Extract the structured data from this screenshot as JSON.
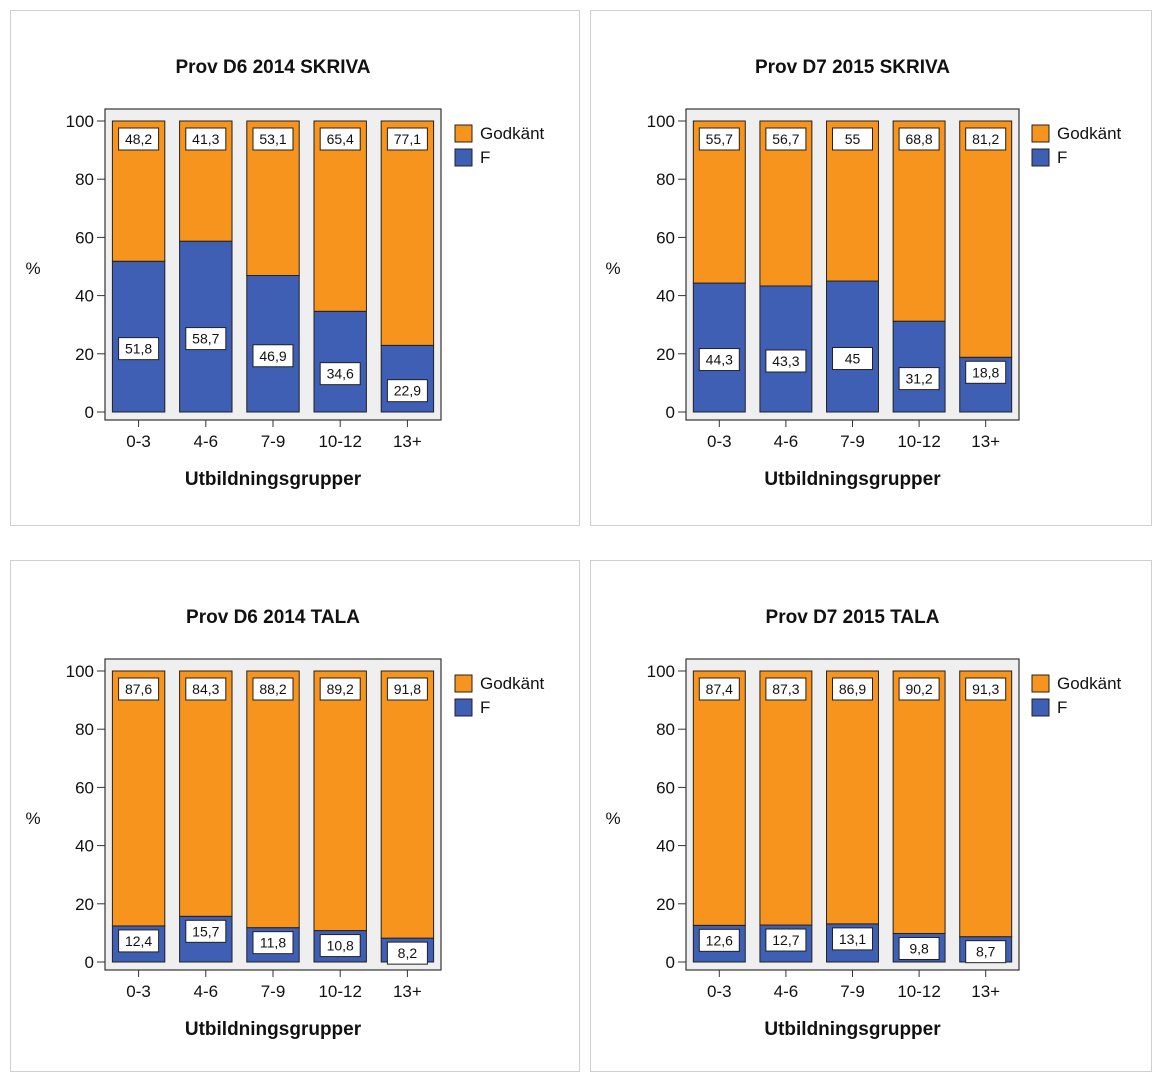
{
  "colors": {
    "godkant": "#F7941D",
    "f": "#3F5FB5",
    "plot_bg": "#EFEFEF"
  },
  "chart_data": [
    {
      "type": "bar",
      "stacked": true,
      "title": "Prov D6 2014 SKRIVA",
      "xlabel": "Utbildningsgrupper",
      "ylabel": "%",
      "ylim": [
        0,
        100
      ],
      "yticks": [
        "0",
        "20",
        "40",
        "60",
        "80",
        "100"
      ],
      "categories": [
        "0-3",
        "4-6",
        "7-9",
        "10-12",
        "13+"
      ],
      "legend_position": "right",
      "series": [
        {
          "name": "Godkänt",
          "values": [
            48.2,
            41.3,
            53.1,
            65.4,
            77.1
          ],
          "labels": [
            "48,2",
            "41,3",
            "53,1",
            "65,4",
            "77,1"
          ]
        },
        {
          "name": "F",
          "values": [
            51.8,
            58.7,
            46.9,
            34.6,
            22.9
          ],
          "labels": [
            "51,8",
            "58,7",
            "46,9",
            "34,6",
            "22,9"
          ]
        }
      ]
    },
    {
      "type": "bar",
      "stacked": true,
      "title": "Prov D7 2015 SKRIVA",
      "xlabel": "Utbildningsgrupper",
      "ylabel": "%",
      "ylim": [
        0,
        100
      ],
      "yticks": [
        "0",
        "20",
        "40",
        "60",
        "80",
        "100"
      ],
      "categories": [
        "0-3",
        "4-6",
        "7-9",
        "10-12",
        "13+"
      ],
      "legend_position": "right",
      "series": [
        {
          "name": "Godkänt",
          "values": [
            55.7,
            56.7,
            55,
            68.8,
            81.2
          ],
          "labels": [
            "55,7",
            "56,7",
            "55",
            "68,8",
            "81,2"
          ]
        },
        {
          "name": "F",
          "values": [
            44.3,
            43.3,
            45,
            31.2,
            18.8
          ],
          "labels": [
            "44,3",
            "43,3",
            "45",
            "31,2",
            "18,8"
          ]
        }
      ]
    },
    {
      "type": "bar",
      "stacked": true,
      "title": "Prov D6 2014 TALA",
      "xlabel": "Utbildningsgrupper",
      "ylabel": "%",
      "ylim": [
        0,
        100
      ],
      "yticks": [
        "0",
        "20",
        "40",
        "60",
        "80",
        "100"
      ],
      "categories": [
        "0-3",
        "4-6",
        "7-9",
        "10-12",
        "13+"
      ],
      "legend_position": "right",
      "series": [
        {
          "name": "Godkänt",
          "values": [
            87.6,
            84.3,
            88.2,
            89.2,
            91.8
          ],
          "labels": [
            "87,6",
            "84,3",
            "88,2",
            "89,2",
            "91,8"
          ]
        },
        {
          "name": "F",
          "values": [
            12.4,
            15.7,
            11.8,
            10.8,
            8.2
          ],
          "labels": [
            "12,4",
            "15,7",
            "11,8",
            "10,8",
            "8,2"
          ]
        }
      ]
    },
    {
      "type": "bar",
      "stacked": true,
      "title": "Prov D7 2015 TALA",
      "xlabel": "Utbildningsgrupper",
      "ylabel": "%",
      "ylim": [
        0,
        100
      ],
      "yticks": [
        "0",
        "20",
        "40",
        "60",
        "80",
        "100"
      ],
      "categories": [
        "0-3",
        "4-6",
        "7-9",
        "10-12",
        "13+"
      ],
      "legend_position": "right",
      "series": [
        {
          "name": "Godkänt",
          "values": [
            87.4,
            87.3,
            86.9,
            90.2,
            91.3
          ],
          "labels": [
            "87,4",
            "87,3",
            "86,9",
            "90,2",
            "91,3"
          ]
        },
        {
          "name": "F",
          "values": [
            12.6,
            12.7,
            13.1,
            9.8,
            8.7
          ],
          "labels": [
            "12,6",
            "12,7",
            "13,1",
            "9,8",
            "8,7"
          ]
        }
      ]
    }
  ]
}
